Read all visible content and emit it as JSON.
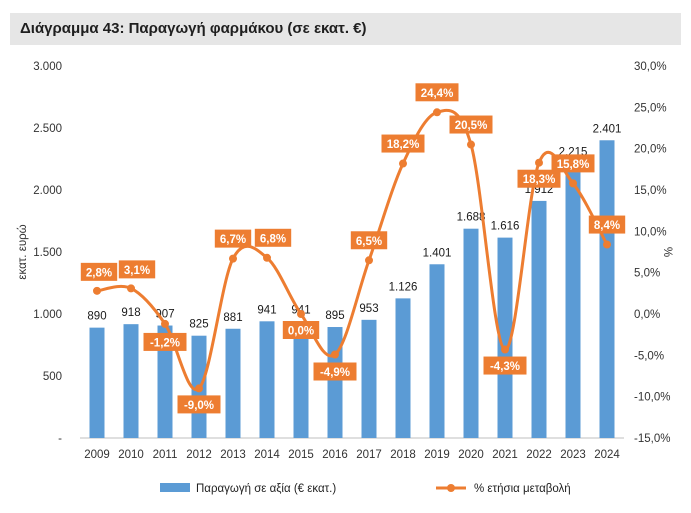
{
  "title": "Διάγραμμα 43: Παραγωγή φαρμάκου (σε εκατ. €)",
  "colors": {
    "bar": "#5b9bd5",
    "line": "#ed7d31",
    "title_bg": "#e6e6e6"
  },
  "chart_data": {
    "type": "bar",
    "categories": [
      "2009",
      "2010",
      "2011",
      "2012",
      "2013",
      "2014",
      "2015",
      "2016",
      "2017",
      "2018",
      "2019",
      "2020",
      "2021",
      "2022",
      "2023",
      "2024"
    ],
    "series": [
      {
        "name": "Παραγωγή σε αξία (€ εκατ.)",
        "type": "bar",
        "axis": "left",
        "values": [
          890,
          918,
          907,
          825,
          881,
          941,
          941,
          895,
          953,
          1126,
          1401,
          1688,
          1616,
          1912,
          2215,
          2401
        ],
        "labels": [
          "890",
          "918",
          "907",
          "825",
          "881",
          "941",
          "941",
          "895",
          "953",
          "1.126",
          "1.401",
          "1.688",
          "1.616",
          "1.912",
          "2.215",
          "2.401"
        ]
      },
      {
        "name": "% ετήσια μεταβολή",
        "type": "line",
        "axis": "right",
        "smooth": true,
        "values": [
          2.8,
          3.1,
          -1.2,
          -9.0,
          6.7,
          6.8,
          0.0,
          -4.9,
          6.5,
          18.2,
          24.4,
          20.5,
          -4.3,
          18.3,
          15.8,
          8.4
        ],
        "labels": [
          "2,8%",
          "3,1%",
          "-1,2%",
          "-9,0%",
          "6,7%",
          "6,8%",
          "0,0%",
          "-4,9%",
          "6,5%",
          "18,2%",
          "24,4%",
          "20,5%",
          "-4,3%",
          "18,3%",
          "15,8%",
          "8,4%"
        ]
      }
    ],
    "ylabel": "εκατ. ευρώ",
    "y2label": "%",
    "ylim": [
      0,
      3000
    ],
    "y2lim": [
      -15,
      30
    ],
    "yticks": [
      "-",
      "500",
      "1.000",
      "1.500",
      "2.000",
      "2.500",
      "3.000"
    ],
    "y2ticks": [
      "-15,0%",
      "-10,0%",
      "-5,0%",
      "0,0%",
      "5,0%",
      "10,0%",
      "15,0%",
      "20,0%",
      "25,0%",
      "30,0%"
    ],
    "grid": false,
    "legend": "bottom"
  }
}
